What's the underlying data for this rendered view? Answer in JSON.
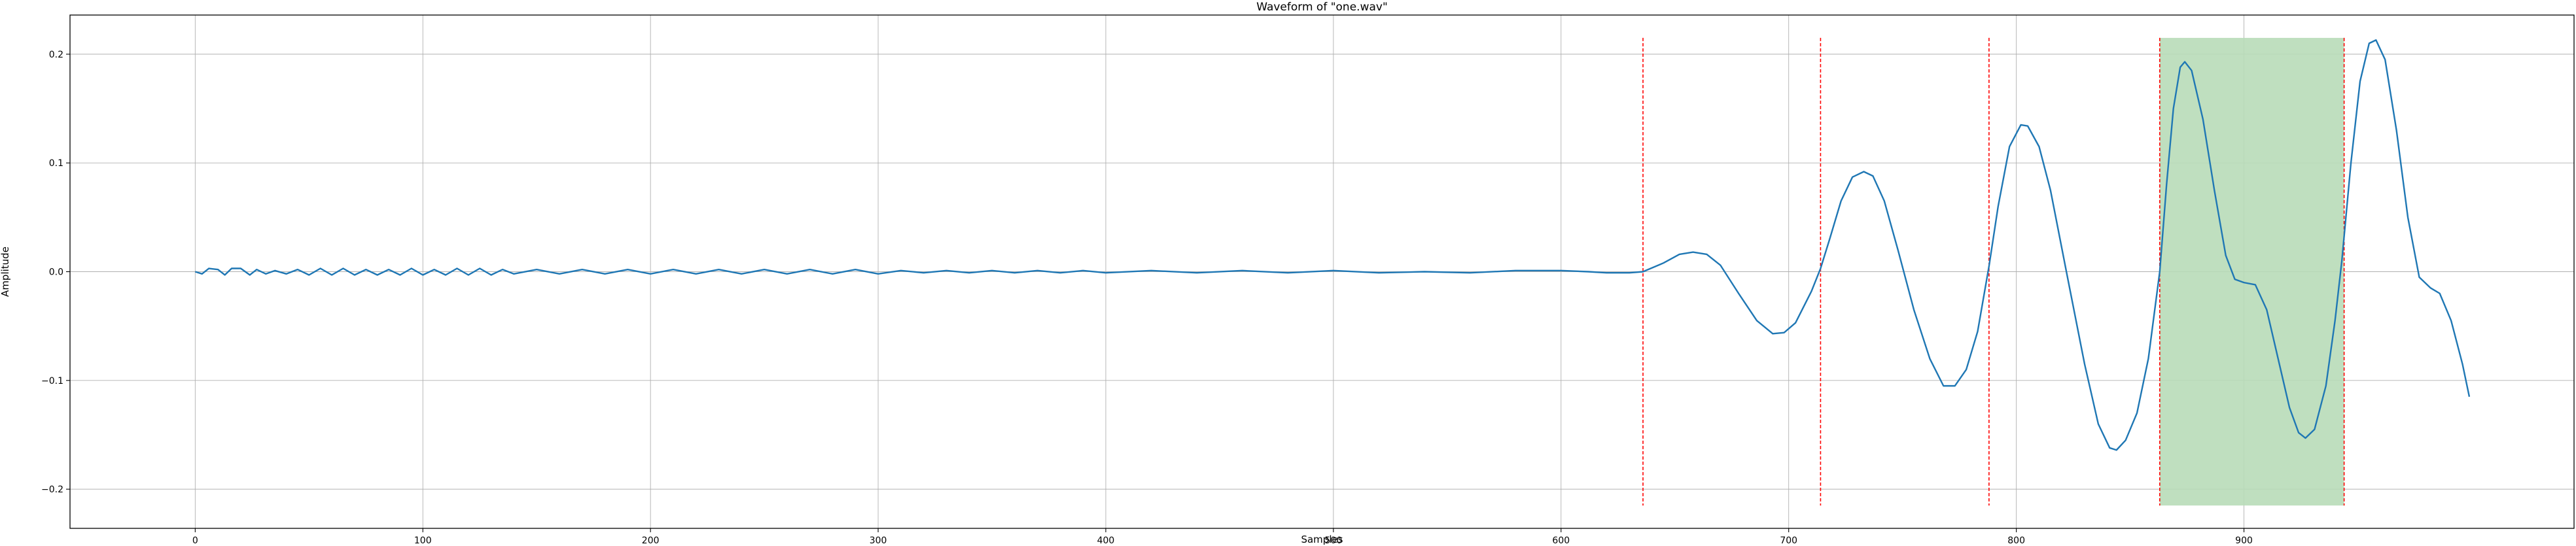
{
  "chart_data": {
    "type": "line",
    "title": "Waveform of \"one.wav\"",
    "xlabel": "Samples",
    "ylabel": "Amplitude",
    "xlim": [
      -55,
      1045
    ],
    "ylim": [
      -0.236,
      0.236
    ],
    "xticks": [
      0,
      100,
      200,
      300,
      400,
      500,
      600,
      700,
      800,
      900
    ],
    "xtick_labels": [
      "0",
      "100",
      "200",
      "300",
      "400",
      "500",
      "600",
      "700",
      "800",
      "900"
    ],
    "yticks": [
      -0.2,
      -0.1,
      0.0,
      0.1,
      0.2
    ],
    "ytick_labels": [
      "−0.2",
      "−0.1",
      "0.0",
      "0.1",
      "0.2"
    ],
    "grid": true,
    "line_color": "#1f77b4",
    "series": [
      {
        "points": [
          [
            0,
            0.0
          ],
          [
            3,
            -0.002
          ],
          [
            6,
            0.003
          ],
          [
            10,
            0.002
          ],
          [
            13,
            -0.003
          ],
          [
            16,
            0.003
          ],
          [
            20,
            0.003
          ],
          [
            24,
            -0.003
          ],
          [
            27,
            0.002
          ],
          [
            31,
            -0.002
          ],
          [
            35,
            0.001
          ],
          [
            40,
            -0.002
          ],
          [
            45,
            0.002
          ],
          [
            50,
            -0.003
          ],
          [
            55,
            0.003
          ],
          [
            60,
            -0.003
          ],
          [
            65,
            0.003
          ],
          [
            70,
            -0.003
          ],
          [
            75,
            0.002
          ],
          [
            80,
            -0.003
          ],
          [
            85,
            0.002
          ],
          [
            90,
            -0.003
          ],
          [
            95,
            0.003
          ],
          [
            100,
            -0.003
          ],
          [
            105,
            0.002
          ],
          [
            110,
            -0.003
          ],
          [
            115,
            0.003
          ],
          [
            120,
            -0.003
          ],
          [
            125,
            0.003
          ],
          [
            130,
            -0.003
          ],
          [
            135,
            0.002
          ],
          [
            140,
            -0.002
          ],
          [
            150,
            0.002
          ],
          [
            160,
            -0.002
          ],
          [
            170,
            0.002
          ],
          [
            180,
            -0.002
          ],
          [
            190,
            0.002
          ],
          [
            200,
            -0.002
          ],
          [
            210,
            0.002
          ],
          [
            220,
            -0.002
          ],
          [
            230,
            0.002
          ],
          [
            240,
            -0.002
          ],
          [
            250,
            0.002
          ],
          [
            260,
            -0.002
          ],
          [
            270,
            0.002
          ],
          [
            280,
            -0.002
          ],
          [
            290,
            0.002
          ],
          [
            300,
            -0.002
          ],
          [
            310,
            0.001
          ],
          [
            320,
            -0.001
          ],
          [
            330,
            0.001
          ],
          [
            340,
            -0.001
          ],
          [
            350,
            0.001
          ],
          [
            360,
            -0.001
          ],
          [
            370,
            0.001
          ],
          [
            380,
            -0.001
          ],
          [
            390,
            0.001
          ],
          [
            400,
            -0.001
          ],
          [
            420,
            0.001
          ],
          [
            440,
            -0.001
          ],
          [
            460,
            0.001
          ],
          [
            480,
            -0.001
          ],
          [
            500,
            0.001
          ],
          [
            520,
            -0.001
          ],
          [
            540,
            0.0
          ],
          [
            560,
            -0.001
          ],
          [
            580,
            0.001
          ],
          [
            600,
            0.001
          ],
          [
            612,
            0.0
          ],
          [
            620,
            -0.001
          ],
          [
            630,
            -0.001
          ],
          [
            636,
            0.0
          ],
          [
            645,
            0.008
          ],
          [
            652,
            0.016
          ],
          [
            658,
            0.018
          ],
          [
            664,
            0.016
          ],
          [
            670,
            0.006
          ],
          [
            678,
            -0.02
          ],
          [
            686,
            -0.045
          ],
          [
            693,
            -0.057
          ],
          [
            698,
            -0.056
          ],
          [
            703,
            -0.047
          ],
          [
            710,
            -0.018
          ],
          [
            714,
            0.003
          ],
          [
            718,
            0.03
          ],
          [
            723,
            0.065
          ],
          [
            728,
            0.087
          ],
          [
            733,
            0.092
          ],
          [
            737,
            0.088
          ],
          [
            742,
            0.065
          ],
          [
            748,
            0.02
          ],
          [
            755,
            -0.035
          ],
          [
            762,
            -0.08
          ],
          [
            768,
            -0.105
          ],
          [
            773,
            -0.105
          ],
          [
            778,
            -0.09
          ],
          [
            783,
            -0.055
          ],
          [
            788,
            0.005
          ],
          [
            792,
            0.06
          ],
          [
            797,
            0.115
          ],
          [
            802,
            0.135
          ],
          [
            805,
            0.134
          ],
          [
            810,
            0.115
          ],
          [
            815,
            0.075
          ],
          [
            822,
            0.0
          ],
          [
            830,
            -0.085
          ],
          [
            836,
            -0.14
          ],
          [
            841,
            -0.162
          ],
          [
            844,
            -0.164
          ],
          [
            848,
            -0.155
          ],
          [
            853,
            -0.13
          ],
          [
            858,
            -0.08
          ],
          [
            863,
            0.0
          ],
          [
            866,
            0.08
          ],
          [
            869,
            0.15
          ],
          [
            872,
            0.188
          ],
          [
            874,
            0.193
          ],
          [
            877,
            0.185
          ],
          [
            882,
            0.14
          ],
          [
            887,
            0.075
          ],
          [
            892,
            0.015
          ],
          [
            896,
            -0.007
          ],
          [
            900,
            -0.01
          ],
          [
            905,
            -0.012
          ],
          [
            910,
            -0.035
          ],
          [
            915,
            -0.08
          ],
          [
            920,
            -0.125
          ],
          [
            924,
            -0.148
          ],
          [
            927,
            -0.153
          ],
          [
            931,
            -0.145
          ],
          [
            936,
            -0.105
          ],
          [
            940,
            -0.045
          ],
          [
            943,
            0.01
          ],
          [
            947,
            0.1
          ],
          [
            951,
            0.175
          ],
          [
            955,
            0.21
          ],
          [
            958,
            0.213
          ],
          [
            962,
            0.195
          ],
          [
            967,
            0.13
          ],
          [
            972,
            0.05
          ],
          [
            977,
            -0.005
          ],
          [
            982,
            -0.015
          ],
          [
            986,
            -0.02
          ],
          [
            991,
            -0.045
          ],
          [
            996,
            -0.085
          ],
          [
            999,
            -0.115
          ]
        ]
      }
    ],
    "vlines": [
      636,
      714,
      788,
      863,
      944
    ],
    "vline_range": [
      -0.215,
      0.215
    ],
    "vline_color": "#ff0000",
    "shaded_region": {
      "x": [
        863,
        944
      ],
      "y": [
        -0.215,
        0.215
      ],
      "color": "#b8dcb8"
    }
  }
}
